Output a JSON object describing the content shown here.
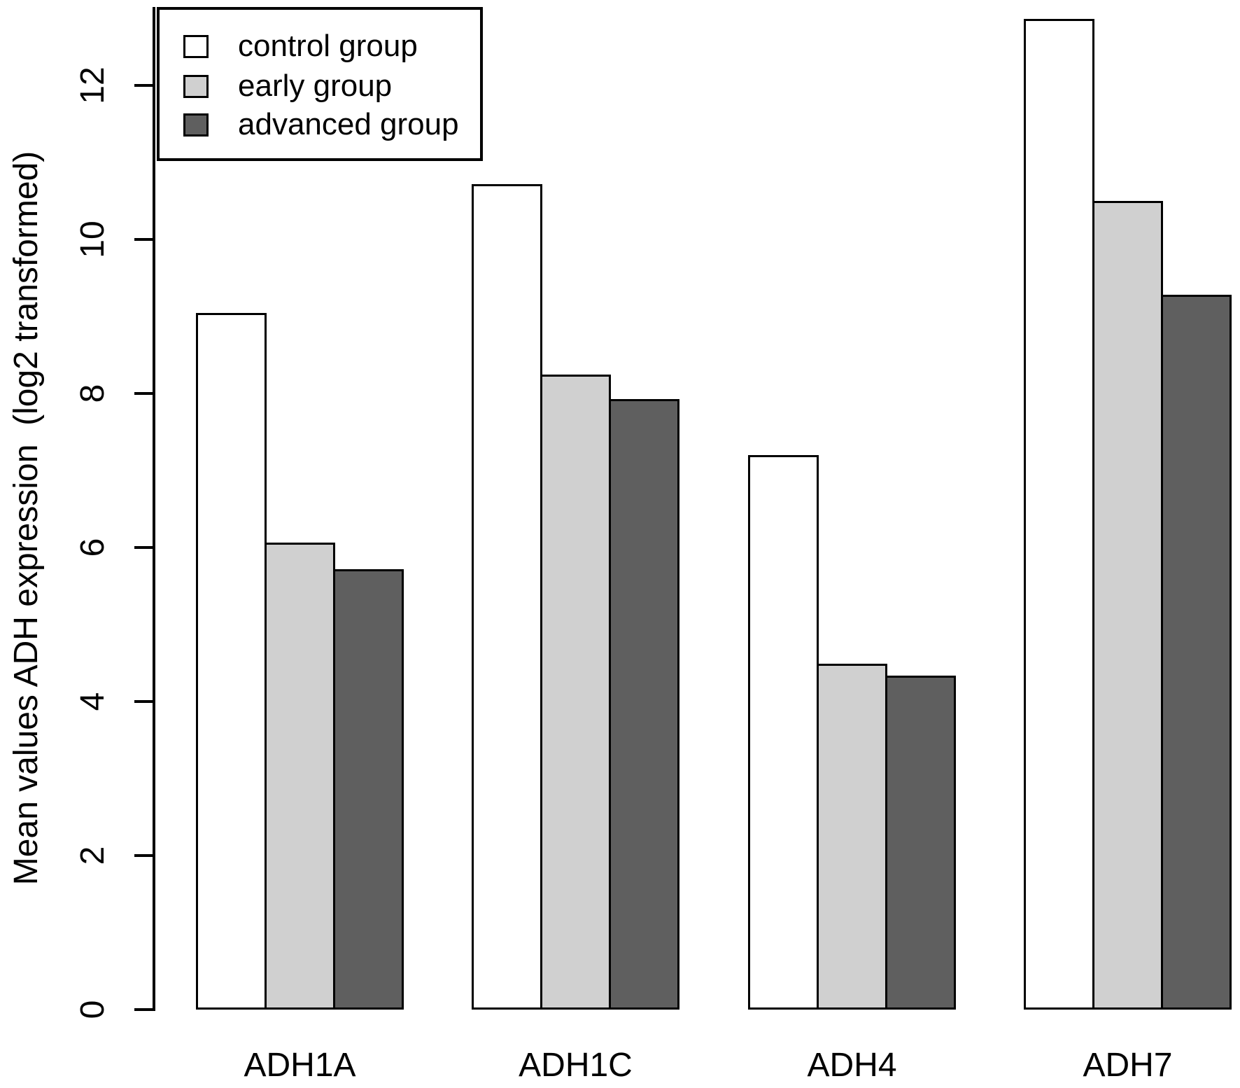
{
  "chart_data": {
    "type": "bar",
    "categories": [
      "ADH1A",
      "ADH1C",
      "ADH4",
      "ADH7"
    ],
    "series": [
      {
        "name": "control group",
        "color": "#ffffff",
        "values": [
          9.05,
          10.72,
          7.2,
          12.86
        ]
      },
      {
        "name": "early group",
        "color": "#d0d0d0",
        "values": [
          6.06,
          8.25,
          4.49,
          10.5
        ]
      },
      {
        "name": "advanced group",
        "color": "#5f5f5f",
        "values": [
          5.72,
          7.93,
          4.34,
          9.28
        ]
      }
    ],
    "title": "",
    "xlabel": "",
    "ylabel": "Mean values ADH expression  (log2 transformed)",
    "ylim": [
      0,
      13.1
    ],
    "yticks": [
      0,
      2,
      4,
      6,
      8,
      10,
      12
    ],
    "grid": false,
    "legend_position": "top-left",
    "bar_border_color": "#000000",
    "axis_color": "#000000"
  }
}
